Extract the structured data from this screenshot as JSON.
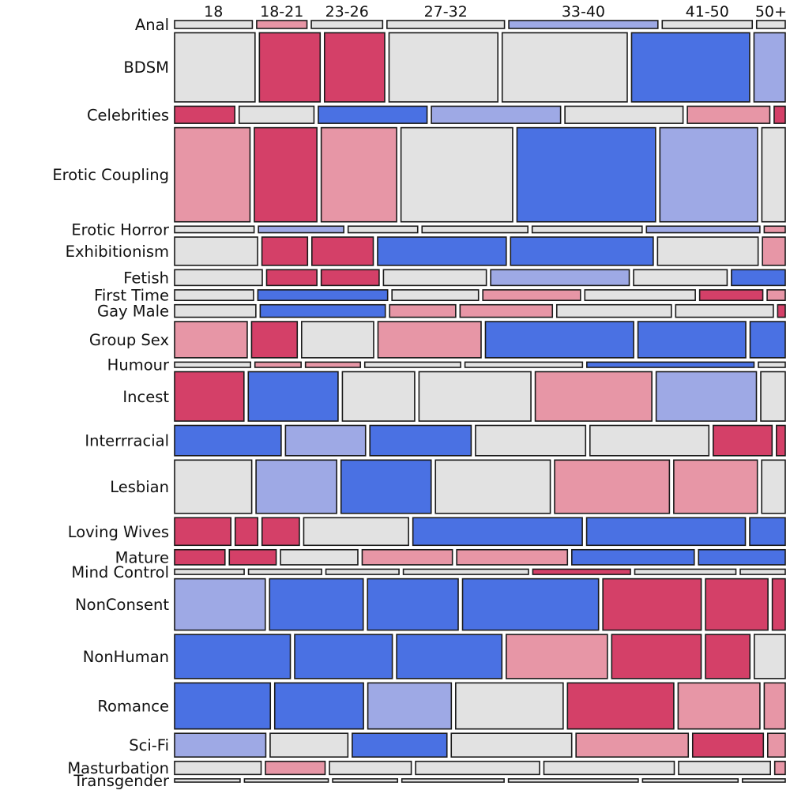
{
  "chart_data": {
    "type": "mosaic",
    "title": "",
    "xlabel": "",
    "ylabel": "",
    "legend": "none",
    "colors": {
      "strong_pos": "#d44068",
      "weak_pos": "#e796a6",
      "neutral": "#e2e2e2",
      "weak_neg": "#9ea9e5",
      "strong_neg": "#4a71e3",
      "edge": "#1a1a1a"
    },
    "age_groups": [
      "18",
      "18-21",
      "23-26",
      "27-32",
      "33-40",
      "41-50",
      "50+"
    ],
    "categories": [
      {
        "name": "Anal",
        "share": 1.2,
        "cells": [
          [
            13.3,
            "n"
          ],
          [
            8.6,
            "wp"
          ],
          [
            12.2,
            "n"
          ],
          [
            20.1,
            "n"
          ],
          [
            25.5,
            "wn"
          ],
          [
            15.4,
            "n"
          ],
          [
            4.9,
            "n"
          ]
        ]
      },
      {
        "name": "BDSM",
        "share": 10.5,
        "cells": [
          [
            13.9,
            "n"
          ],
          [
            10.5,
            "sp"
          ],
          [
            10.4,
            "sp"
          ],
          [
            18.8,
            "n"
          ],
          [
            21.6,
            "n"
          ],
          [
            20.4,
            "sn"
          ],
          [
            5.4,
            "wn"
          ]
        ]
      },
      {
        "name": "Celebrities",
        "share": 2.6,
        "cells": [
          [
            10.3,
            "sp"
          ],
          [
            12.8,
            "n"
          ],
          [
            18.6,
            "sn"
          ],
          [
            22.1,
            "wn"
          ],
          [
            20.2,
            "n"
          ],
          [
            14.1,
            "wp"
          ],
          [
            1.9,
            "sp"
          ]
        ]
      },
      {
        "name": "Erotic Coupling",
        "share": 14.3,
        "cells": [
          [
            12.9,
            "wp"
          ],
          [
            10.7,
            "sp"
          ],
          [
            12.9,
            "wp"
          ],
          [
            19.1,
            "n"
          ],
          [
            23.7,
            "sn"
          ],
          [
            16.7,
            "wn"
          ],
          [
            4.0,
            "n"
          ]
        ]
      },
      {
        "name": "Erotic Horror",
        "share": 1.0,
        "cells": [
          [
            13.6,
            "n"
          ],
          [
            14.6,
            "wn"
          ],
          [
            11.9,
            "n"
          ],
          [
            18.1,
            "n"
          ],
          [
            18.8,
            "n"
          ],
          [
            19.4,
            "wn"
          ],
          [
            3.6,
            "wp"
          ]
        ]
      },
      {
        "name": "Exhibitionism",
        "share": 4.3,
        "cells": [
          [
            14.2,
            "n"
          ],
          [
            7.8,
            "sp"
          ],
          [
            10.5,
            "sp"
          ],
          [
            22.0,
            "sn"
          ],
          [
            24.4,
            "sn"
          ],
          [
            17.2,
            "n"
          ],
          [
            3.9,
            "wp"
          ]
        ]
      },
      {
        "name": "Fetish",
        "share": 2.4,
        "cells": [
          [
            15.0,
            "n"
          ],
          [
            8.6,
            "sp"
          ],
          [
            9.9,
            "sp"
          ],
          [
            17.6,
            "n"
          ],
          [
            23.7,
            "wn"
          ],
          [
            16.0,
            "n"
          ],
          [
            9.2,
            "sn"
          ]
        ]
      },
      {
        "name": "First Time",
        "share": 1.6,
        "cells": [
          [
            13.5,
            "n"
          ],
          [
            22.2,
            "sn"
          ],
          [
            14.8,
            "n"
          ],
          [
            16.7,
            "wp"
          ],
          [
            18.9,
            "n"
          ],
          [
            10.8,
            "sp"
          ],
          [
            3.1,
            "wp"
          ]
        ]
      },
      {
        "name": "Gay Male",
        "share": 1.9,
        "cells": [
          [
            13.9,
            "n"
          ],
          [
            21.4,
            "sn"
          ],
          [
            11.3,
            "wp"
          ],
          [
            15.8,
            "wp"
          ],
          [
            19.6,
            "n"
          ],
          [
            16.7,
            "n"
          ],
          [
            1.3,
            "sp"
          ]
        ]
      },
      {
        "name": "Group Sex",
        "share": 5.5,
        "cells": [
          [
            12.4,
            "wp"
          ],
          [
            7.8,
            "sp"
          ],
          [
            12.3,
            "n"
          ],
          [
            17.6,
            "wp"
          ],
          [
            25.3,
            "sn"
          ],
          [
            18.4,
            "sn"
          ],
          [
            6.0,
            "sn"
          ]
        ]
      },
      {
        "name": "Humour",
        "share": 0.8,
        "cells": [
          [
            13.0,
            "n"
          ],
          [
            7.9,
            "wp"
          ],
          [
            9.4,
            "wp"
          ],
          [
            16.4,
            "n"
          ],
          [
            20.1,
            "n"
          ],
          [
            28.6,
            "sn"
          ],
          [
            4.6,
            "n"
          ]
        ]
      },
      {
        "name": "Incest",
        "share": 7.5,
        "cells": [
          [
            11.9,
            "sp"
          ],
          [
            15.4,
            "sn"
          ],
          [
            12.4,
            "n"
          ],
          [
            19.2,
            "n"
          ],
          [
            20.0,
            "wp"
          ],
          [
            17.2,
            "wn"
          ],
          [
            4.2,
            "n"
          ]
        ]
      },
      {
        "name": "Interrracial",
        "share": 4.6,
        "cells": [
          [
            18.1,
            "sn"
          ],
          [
            13.6,
            "wn"
          ],
          [
            17.2,
            "sn"
          ],
          [
            18.7,
            "n"
          ],
          [
            20.2,
            "n"
          ],
          [
            10.0,
            "sp"
          ],
          [
            1.5,
            "sp"
          ]
        ]
      },
      {
        "name": "Lesbian",
        "share": 8.1,
        "cells": [
          [
            13.1,
            "n"
          ],
          [
            13.7,
            "wn"
          ],
          [
            15.3,
            "sn"
          ],
          [
            19.5,
            "n"
          ],
          [
            19.5,
            "wp"
          ],
          [
            14.2,
            "wp"
          ],
          [
            4.0,
            "n"
          ]
        ]
      },
      {
        "name": "Loving Wives",
        "share": 4.2,
        "cells": [
          [
            9.5,
            "sp"
          ],
          [
            3.8,
            "sp"
          ],
          [
            6.3,
            "sp"
          ],
          [
            17.7,
            "n"
          ],
          [
            28.6,
            "sn"
          ],
          [
            26.8,
            "sn"
          ],
          [
            6.0,
            "sn"
          ]
        ]
      },
      {
        "name": "Mature",
        "share": 2.3,
        "cells": [
          [
            8.6,
            "sp"
          ],
          [
            8.0,
            "sp"
          ],
          [
            13.2,
            "n"
          ],
          [
            15.4,
            "wp"
          ],
          [
            18.9,
            "wp"
          ],
          [
            20.9,
            "sn"
          ],
          [
            14.8,
            "sn"
          ]
        ]
      },
      {
        "name": "Mind Control",
        "share": 0.8,
        "cells": [
          [
            11.9,
            "n"
          ],
          [
            12.5,
            "n"
          ],
          [
            12.5,
            "n"
          ],
          [
            21.4,
            "n"
          ],
          [
            16.7,
            "sp"
          ],
          [
            17.3,
            "n"
          ],
          [
            7.7,
            "n"
          ]
        ]
      },
      {
        "name": "NonConsent",
        "share": 7.8,
        "cells": [
          [
            15.4,
            "wn"
          ],
          [
            15.9,
            "sn"
          ],
          [
            15.4,
            "sn"
          ],
          [
            23.1,
            "sn"
          ],
          [
            16.7,
            "sp"
          ],
          [
            10.6,
            "sp"
          ],
          [
            2.2,
            "sp"
          ]
        ]
      },
      {
        "name": "NonHuman",
        "share": 6.7,
        "cells": [
          [
            19.8,
            "sn"
          ],
          [
            16.7,
            "sn"
          ],
          [
            18.0,
            "sn"
          ],
          [
            17.3,
            "wp"
          ],
          [
            15.3,
            "sp"
          ],
          [
            7.6,
            "sp"
          ],
          [
            5.3,
            "n"
          ]
        ]
      },
      {
        "name": "Romance",
        "share": 7.0,
        "cells": [
          [
            16.4,
            "sn"
          ],
          [
            15.2,
            "sn"
          ],
          [
            14.3,
            "wn"
          ],
          [
            18.4,
            "n"
          ],
          [
            18.2,
            "sp"
          ],
          [
            14.0,
            "wp"
          ],
          [
            3.6,
            "wp"
          ]
        ]
      },
      {
        "name": "Sci-Fi",
        "share": 3.6,
        "cells": [
          [
            15.6,
            "wn"
          ],
          [
            13.3,
            "n"
          ],
          [
            16.2,
            "sn"
          ],
          [
            20.6,
            "n"
          ],
          [
            19.2,
            "wp"
          ],
          [
            12.1,
            "sp"
          ],
          [
            3.0,
            "wp"
          ]
        ]
      },
      {
        "name": "Masturbation",
        "share": 2.0,
        "cells": [
          [
            14.8,
            "n"
          ],
          [
            10.2,
            "wp"
          ],
          [
            14.0,
            "n"
          ],
          [
            21.2,
            "n"
          ],
          [
            22.3,
            "n"
          ],
          [
            15.7,
            "n"
          ],
          [
            1.8,
            "wp"
          ]
        ]
      },
      {
        "name": "Transgender",
        "share": 0.5,
        "cells": [
          [
            10.7,
            "n"
          ],
          [
            13.7,
            "n"
          ],
          [
            10.6,
            "n"
          ],
          [
            16.7,
            "n"
          ],
          [
            21.2,
            "n"
          ],
          [
            15.6,
            "n"
          ],
          [
            7.0,
            "n"
          ]
        ]
      }
    ]
  }
}
